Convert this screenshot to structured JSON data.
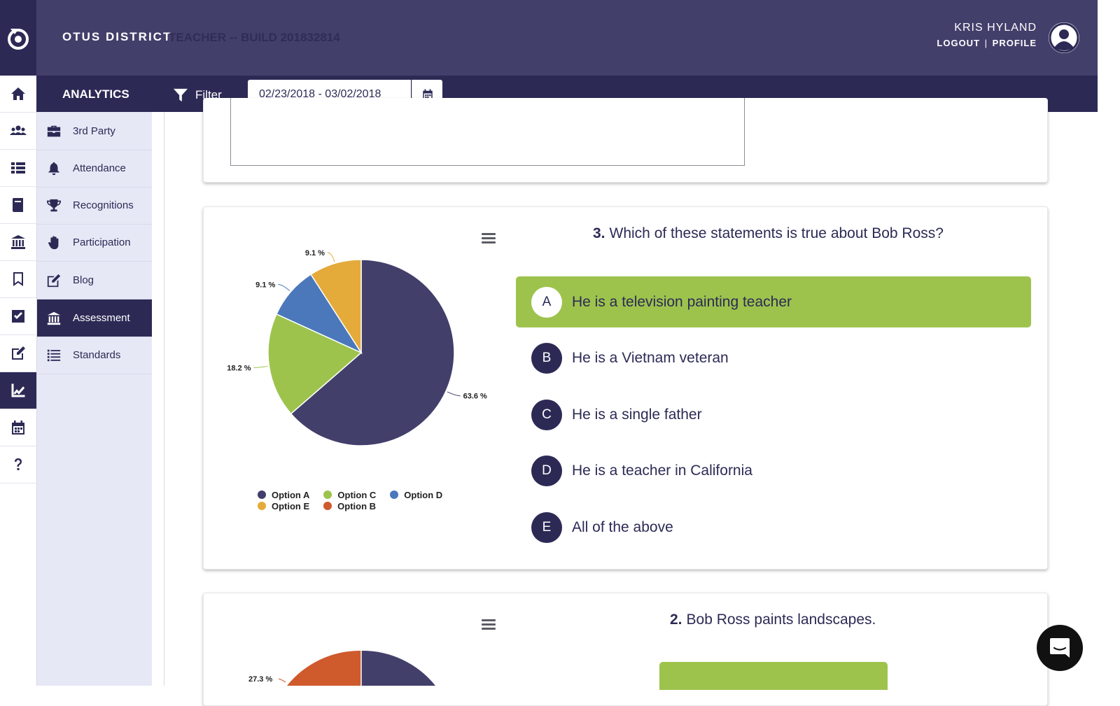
{
  "header": {
    "district": "OTUS DISTRICT",
    "build": "TEACHER -- BUILD 201832814",
    "user_name": "KRIS HYLAND",
    "logout": "LOGOUT",
    "separator": "|",
    "profile": "PROFILE"
  },
  "subheader": {
    "section": "ANALYTICS",
    "filter": "Filter",
    "date_range": "02/23/2018 - 03/02/2018"
  },
  "rail": {
    "icons": [
      "home-icon",
      "users-icon",
      "list-icon",
      "book-icon",
      "institution-icon",
      "bookmark-icon",
      "checkbox-icon",
      "edit-icon",
      "chart-icon",
      "calendar-icon",
      "help-icon"
    ],
    "active": "chart-icon"
  },
  "sidebar": {
    "items": [
      {
        "label": "3rd Party",
        "icon": "briefcase-icon"
      },
      {
        "label": "Attendance",
        "icon": "bell-icon"
      },
      {
        "label": "Recognitions",
        "icon": "trophy-icon"
      },
      {
        "label": "Participation",
        "icon": "hand-icon"
      },
      {
        "label": "Blog",
        "icon": "edit-icon"
      },
      {
        "label": "Assessment",
        "icon": "institution-icon",
        "active": true
      },
      {
        "label": "Standards",
        "icon": "list-icon"
      }
    ]
  },
  "q3": {
    "number": "3.",
    "text": "Which of these statements is true about Bob Ross?",
    "answers": [
      {
        "letter": "A",
        "text": "He is a television painting teacher",
        "correct": true
      },
      {
        "letter": "B",
        "text": "He is a Vietnam veteran"
      },
      {
        "letter": "C",
        "text": "He is a single father"
      },
      {
        "letter": "D",
        "text": "He is a teacher in California"
      },
      {
        "letter": "E",
        "text": "All of the above"
      }
    ]
  },
  "q2": {
    "number": "2.",
    "text": "Bob Ross paints landscapes."
  },
  "colors": {
    "primary": "#2c2a55",
    "header": "#423f6b",
    "correct": "#9dc34d",
    "option_a": "#423f6b",
    "option_b": "#cf5a2c",
    "option_c": "#9dc34d",
    "option_d": "#4a78bb",
    "option_e": "#e4ab3b"
  },
  "chart_data": [
    {
      "type": "pie",
      "slices": [
        {
          "label": "Option A",
          "value": 63.6,
          "color": "#423f6b",
          "display": "63.6 %"
        },
        {
          "label": "Option C",
          "value": 18.2,
          "color": "#9dc34d",
          "display": "18.2 %"
        },
        {
          "label": "Option D",
          "value": 9.1,
          "color": "#4a78bb",
          "display": "9.1 %"
        },
        {
          "label": "Option E",
          "value": 9.1,
          "color": "#e4ab3b",
          "display": "9.1 %"
        }
      ],
      "legend": [
        "Option A",
        "Option C",
        "Option D",
        "Option E",
        "Option B"
      ],
      "legend_colors": [
        "#423f6b",
        "#9dc34d",
        "#4a78bb",
        "#e4ab3b",
        "#cf5a2c"
      ],
      "legend_position": "bottom"
    },
    {
      "type": "pie",
      "visible_labels": [
        "27.3 %"
      ],
      "slices": [
        {
          "label": "Option B",
          "value": 27.3,
          "color": "#cf5a2c",
          "display": "27.3 %"
        }
      ]
    }
  ]
}
